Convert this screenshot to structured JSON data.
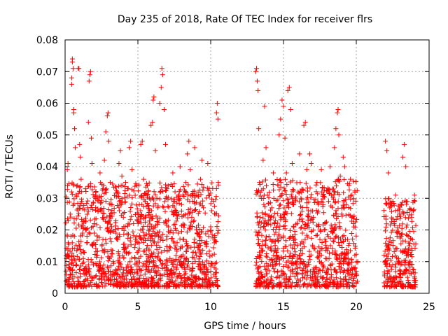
{
  "chart_data": {
    "type": "scatter",
    "title": "Day 235 of 2018, Rate Of TEC Index for receiver flrs",
    "xlabel": "GPS time / hours",
    "ylabel": "ROTI / TECUs",
    "xlim": [
      0,
      25
    ],
    "ylim": [
      0,
      0.08
    ],
    "xticks": [
      0,
      5,
      10,
      15,
      20,
      25
    ],
    "xtick_labels": [
      "0",
      "5",
      "10",
      "15",
      "20",
      "25"
    ],
    "yticks": [
      0,
      0.01,
      0.02,
      0.03,
      0.04,
      0.05,
      0.06,
      0.07,
      0.08
    ],
    "ytick_labels": [
      "0",
      "0.01",
      "0.02",
      "0.03",
      "0.04",
      "0.05",
      "0.06",
      "0.07",
      "0.08"
    ],
    "grid": true,
    "marker": "+",
    "color": "#ff0000",
    "series": [
      {
        "name": "ROTI",
        "points": [
          [
            0.1,
            0.004
          ],
          [
            0.15,
            0.039
          ],
          [
            0.2,
            0.041
          ],
          [
            0.25,
            0.012
          ],
          [
            0.3,
            0.003
          ],
          [
            0.35,
            0.025
          ],
          [
            0.4,
            0.018
          ],
          [
            0.45,
            0.066
          ],
          [
            0.45,
            0.068
          ],
          [
            0.5,
            0.073
          ],
          [
            0.5,
            0.074
          ],
          [
            0.55,
            0.071
          ],
          [
            0.6,
            0.057
          ],
          [
            0.6,
            0.058
          ],
          [
            0.65,
            0.052
          ],
          [
            0.7,
            0.046
          ],
          [
            0.75,
            0.031
          ],
          [
            0.8,
            0.009
          ],
          [
            0.85,
            0.014
          ],
          [
            0.9,
            0.071
          ],
          [
            0.95,
            0.071
          ],
          [
            1.0,
            0.047
          ],
          [
            1.05,
            0.043
          ],
          [
            1.1,
            0.036
          ],
          [
            1.15,
            0.029
          ],
          [
            1.2,
            0.019
          ],
          [
            1.25,
            0.011
          ],
          [
            1.3,
            0.006
          ],
          [
            1.35,
            0.023
          ],
          [
            1.4,
            0.033
          ],
          [
            1.5,
            0.018
          ],
          [
            1.55,
            0.027
          ],
          [
            1.6,
            0.054
          ],
          [
            1.65,
            0.067
          ],
          [
            1.7,
            0.069
          ],
          [
            1.75,
            0.07
          ],
          [
            1.8,
            0.049
          ],
          [
            1.85,
            0.041
          ],
          [
            1.9,
            0.015
          ],
          [
            1.95,
            0.009
          ],
          [
            2.0,
            0.022
          ],
          [
            2.1,
            0.031
          ],
          [
            2.2,
            0.012
          ],
          [
            2.3,
            0.007
          ],
          [
            2.4,
            0.038
          ],
          [
            2.5,
            0.026
          ],
          [
            2.6,
            0.017
          ],
          [
            2.7,
            0.042
          ],
          [
            2.8,
            0.051
          ],
          [
            2.9,
            0.056
          ],
          [
            2.95,
            0.057
          ],
          [
            3.0,
            0.048
          ],
          [
            3.1,
            0.035
          ],
          [
            3.2,
            0.021
          ],
          [
            3.3,
            0.01
          ],
          [
            3.4,
            0.006
          ],
          [
            3.5,
            0.019
          ],
          [
            3.6,
            0.032
          ],
          [
            3.7,
            0.041
          ],
          [
            3.8,
            0.045
          ],
          [
            3.9,
            0.037
          ],
          [
            4.0,
            0.024
          ],
          [
            4.1,
            0.013
          ],
          [
            4.2,
            0.008
          ],
          [
            4.3,
            0.033
          ],
          [
            4.4,
            0.046
          ],
          [
            4.5,
            0.048
          ],
          [
            4.6,
            0.039
          ],
          [
            4.7,
            0.022
          ],
          [
            4.8,
            0.011
          ],
          [
            5.0,
            0.016
          ],
          [
            5.1,
            0.028
          ],
          [
            5.2,
            0.047
          ],
          [
            5.3,
            0.048
          ],
          [
            5.4,
            0.036
          ],
          [
            5.5,
            0.024
          ],
          [
            5.6,
            0.014
          ],
          [
            5.7,
            0.007
          ],
          [
            5.8,
            0.03
          ],
          [
            5.9,
            0.053
          ],
          [
            6.0,
            0.054
          ],
          [
            6.05,
            0.061
          ],
          [
            6.1,
            0.062
          ],
          [
            6.2,
            0.045
          ],
          [
            6.3,
            0.03
          ],
          [
            6.4,
            0.018
          ],
          [
            6.5,
            0.06
          ],
          [
            6.6,
            0.065
          ],
          [
            6.65,
            0.071
          ],
          [
            6.7,
            0.069
          ],
          [
            6.8,
            0.058
          ],
          [
            6.9,
            0.047
          ],
          [
            7.0,
            0.033
          ],
          [
            7.1,
            0.021
          ],
          [
            7.2,
            0.011
          ],
          [
            7.3,
            0.006
          ],
          [
            7.4,
            0.038
          ],
          [
            7.5,
            0.026
          ],
          [
            7.6,
            0.015
          ],
          [
            7.7,
            0.009
          ],
          [
            7.8,
            0.031
          ],
          [
            7.9,
            0.04
          ],
          [
            8.0,
            0.028
          ],
          [
            8.1,
            0.017
          ],
          [
            8.2,
            0.008
          ],
          [
            8.3,
            0.035
          ],
          [
            8.4,
            0.044
          ],
          [
            8.5,
            0.048
          ],
          [
            8.6,
            0.039
          ],
          [
            8.7,
            0.024
          ],
          [
            8.8,
            0.013
          ],
          [
            8.9,
            0.046
          ],
          [
            9.0,
            0.031
          ],
          [
            9.1,
            0.019
          ],
          [
            9.2,
            0.01
          ],
          [
            9.3,
            0.036
          ],
          [
            9.4,
            0.042
          ],
          [
            9.5,
            0.027
          ],
          [
            9.6,
            0.016
          ],
          [
            9.7,
            0.008
          ],
          [
            9.8,
            0.041
          ],
          [
            9.9,
            0.033
          ],
          [
            10.0,
            0.021
          ],
          [
            10.1,
            0.012
          ],
          [
            10.2,
            0.006
          ],
          [
            10.3,
            0.025
          ],
          [
            10.4,
            0.057
          ],
          [
            10.45,
            0.06
          ],
          [
            10.5,
            0.055
          ],
          [
            13.1,
            0.07
          ],
          [
            13.15,
            0.071
          ],
          [
            13.2,
            0.067
          ],
          [
            13.25,
            0.064
          ],
          [
            13.3,
            0.052
          ],
          [
            13.35,
            0.035
          ],
          [
            13.4,
            0.024
          ],
          [
            13.45,
            0.012
          ],
          [
            13.5,
            0.006
          ],
          [
            13.6,
            0.042
          ],
          [
            13.7,
            0.059
          ],
          [
            13.8,
            0.046
          ],
          [
            13.9,
            0.031
          ],
          [
            14.0,
            0.018
          ],
          [
            14.1,
            0.009
          ],
          [
            14.2,
            0.027
          ],
          [
            14.3,
            0.038
          ],
          [
            14.4,
            0.022
          ],
          [
            14.5,
            0.013
          ],
          [
            14.6,
            0.007
          ],
          [
            14.7,
            0.05
          ],
          [
            14.8,
            0.055
          ],
          [
            14.9,
            0.061
          ],
          [
            15.0,
            0.059
          ],
          [
            15.1,
            0.049
          ],
          [
            15.2,
            0.038
          ],
          [
            15.3,
            0.064
          ],
          [
            15.4,
            0.065
          ],
          [
            15.5,
            0.058
          ],
          [
            15.6,
            0.041
          ],
          [
            15.7,
            0.028
          ],
          [
            15.8,
            0.016
          ],
          [
            15.9,
            0.009
          ],
          [
            16.0,
            0.032
          ],
          [
            16.1,
            0.044
          ],
          [
            16.2,
            0.03
          ],
          [
            16.3,
            0.019
          ],
          [
            16.4,
            0.053
          ],
          [
            16.5,
            0.054
          ],
          [
            16.6,
            0.039
          ],
          [
            16.7,
            0.025
          ],
          [
            16.8,
            0.044
          ],
          [
            16.9,
            0.041
          ],
          [
            17.0,
            0.026
          ],
          [
            17.1,
            0.014
          ],
          [
            17.2,
            0.008
          ],
          [
            17.3,
            0.035
          ],
          [
            17.4,
            0.028
          ],
          [
            17.5,
            0.017
          ],
          [
            17.6,
            0.039
          ],
          [
            17.7,
            0.031
          ],
          [
            17.8,
            0.02
          ],
          [
            17.9,
            0.011
          ],
          [
            18.0,
            0.006
          ],
          [
            18.1,
            0.029
          ],
          [
            18.2,
            0.04
          ],
          [
            18.3,
            0.031
          ],
          [
            18.4,
            0.019
          ],
          [
            18.5,
            0.046
          ],
          [
            18.6,
            0.052
          ],
          [
            18.7,
            0.057
          ],
          [
            18.75,
            0.058
          ],
          [
            18.8,
            0.05
          ],
          [
            18.9,
            0.037
          ],
          [
            19.0,
            0.025
          ],
          [
            19.1,
            0.043
          ],
          [
            19.2,
            0.04
          ],
          [
            19.3,
            0.028
          ],
          [
            19.4,
            0.017
          ],
          [
            19.5,
            0.009
          ],
          [
            19.6,
            0.036
          ],
          [
            19.7,
            0.031
          ],
          [
            19.8,
            0.022
          ],
          [
            19.9,
            0.012
          ],
          [
            20.0,
            0.007
          ],
          [
            22.0,
            0.048
          ],
          [
            22.1,
            0.045
          ],
          [
            22.2,
            0.038
          ],
          [
            22.3,
            0.027
          ],
          [
            22.4,
            0.016
          ],
          [
            22.5,
            0.009
          ],
          [
            22.6,
            0.022
          ],
          [
            22.7,
            0.031
          ],
          [
            22.8,
            0.018
          ],
          [
            22.9,
            0.011
          ],
          [
            23.0,
            0.006
          ],
          [
            23.1,
            0.028
          ],
          [
            23.2,
            0.043
          ],
          [
            23.3,
            0.047
          ],
          [
            23.4,
            0.04
          ],
          [
            23.5,
            0.029
          ],
          [
            23.6,
            0.018
          ],
          [
            23.7,
            0.01
          ],
          [
            23.8,
            0.024
          ],
          [
            23.9,
            0.026
          ],
          [
            24.0,
            0.031
          ],
          [
            24.05,
            0.002
          ]
        ]
      }
    ],
    "dense_bands": [
      {
        "x_range": [
          0.05,
          10.55
        ],
        "y_base": [
          0.002,
          0.035
        ]
      },
      {
        "x_range": [
          13.1,
          20.1
        ],
        "y_base": [
          0.002,
          0.036
        ]
      },
      {
        "x_range": [
          21.9,
          24.1
        ],
        "y_base": [
          0.002,
          0.03
        ]
      }
    ]
  }
}
